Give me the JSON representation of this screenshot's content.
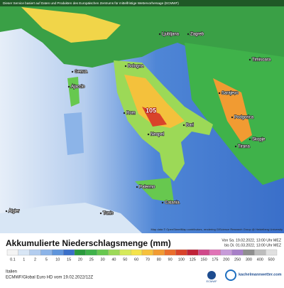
{
  "header_note": "Dieser Service basiert auf Daten und Produkten des Europäischen Zentrums für mittelfristige Wettervorhersage (ECMWF)",
  "cities": [
    "Ljubljana",
    "Zagreb",
    "Timisoara",
    "Genua",
    "Bologna",
    "Ajaccio",
    "Sarajevo",
    "Rom",
    "Podgorica",
    "Bari",
    "Neapel",
    "Tirana",
    "Skopje",
    "Palermo",
    "Catania",
    "Tunis",
    "Algier"
  ],
  "max_annotation": 105,
  "attribution": "Map data © OpenStreetMap contributors, rendering GIScience Research Group @ Heidelberg University",
  "legend": {
    "title": "Akkumulierte Niederschlagsmenge (mm)",
    "valid_from": "Von Sa. 19.02.2022, 13:00 Uhr MEZ",
    "valid_to": "bis Di. 01.03.2022, 13:00 Uhr MEZ",
    "ticks": [
      0.1,
      1,
      2,
      5,
      10,
      15,
      20,
      25,
      30,
      40,
      50,
      60,
      70,
      80,
      90,
      100,
      125,
      150,
      175,
      200,
      250,
      300,
      400,
      500
    ],
    "colors": [
      "#f4f4f4",
      "#d8e6f5",
      "#b3cdef",
      "#8cb4e8",
      "#5f95dc",
      "#3a6fc9",
      "#2a9a3c",
      "#3fb24a",
      "#67c84f",
      "#9cd957",
      "#d6ea5a",
      "#f4e34a",
      "#f6c13c",
      "#f19b32",
      "#ea6e2c",
      "#d9432a",
      "#c02238",
      "#d0488a",
      "#e073b6",
      "#c79bd9",
      "#a77fc8",
      "#8f8f8f",
      "#bdbdbd",
      "#e0e0e0"
    ]
  },
  "footer": {
    "region": "Italien",
    "model": "ECMWF/Global Euro HD vom 19.02.2022/12Z",
    "logo_left": "ECMWF",
    "logo_right": "kachelmannwetter.com"
  }
}
